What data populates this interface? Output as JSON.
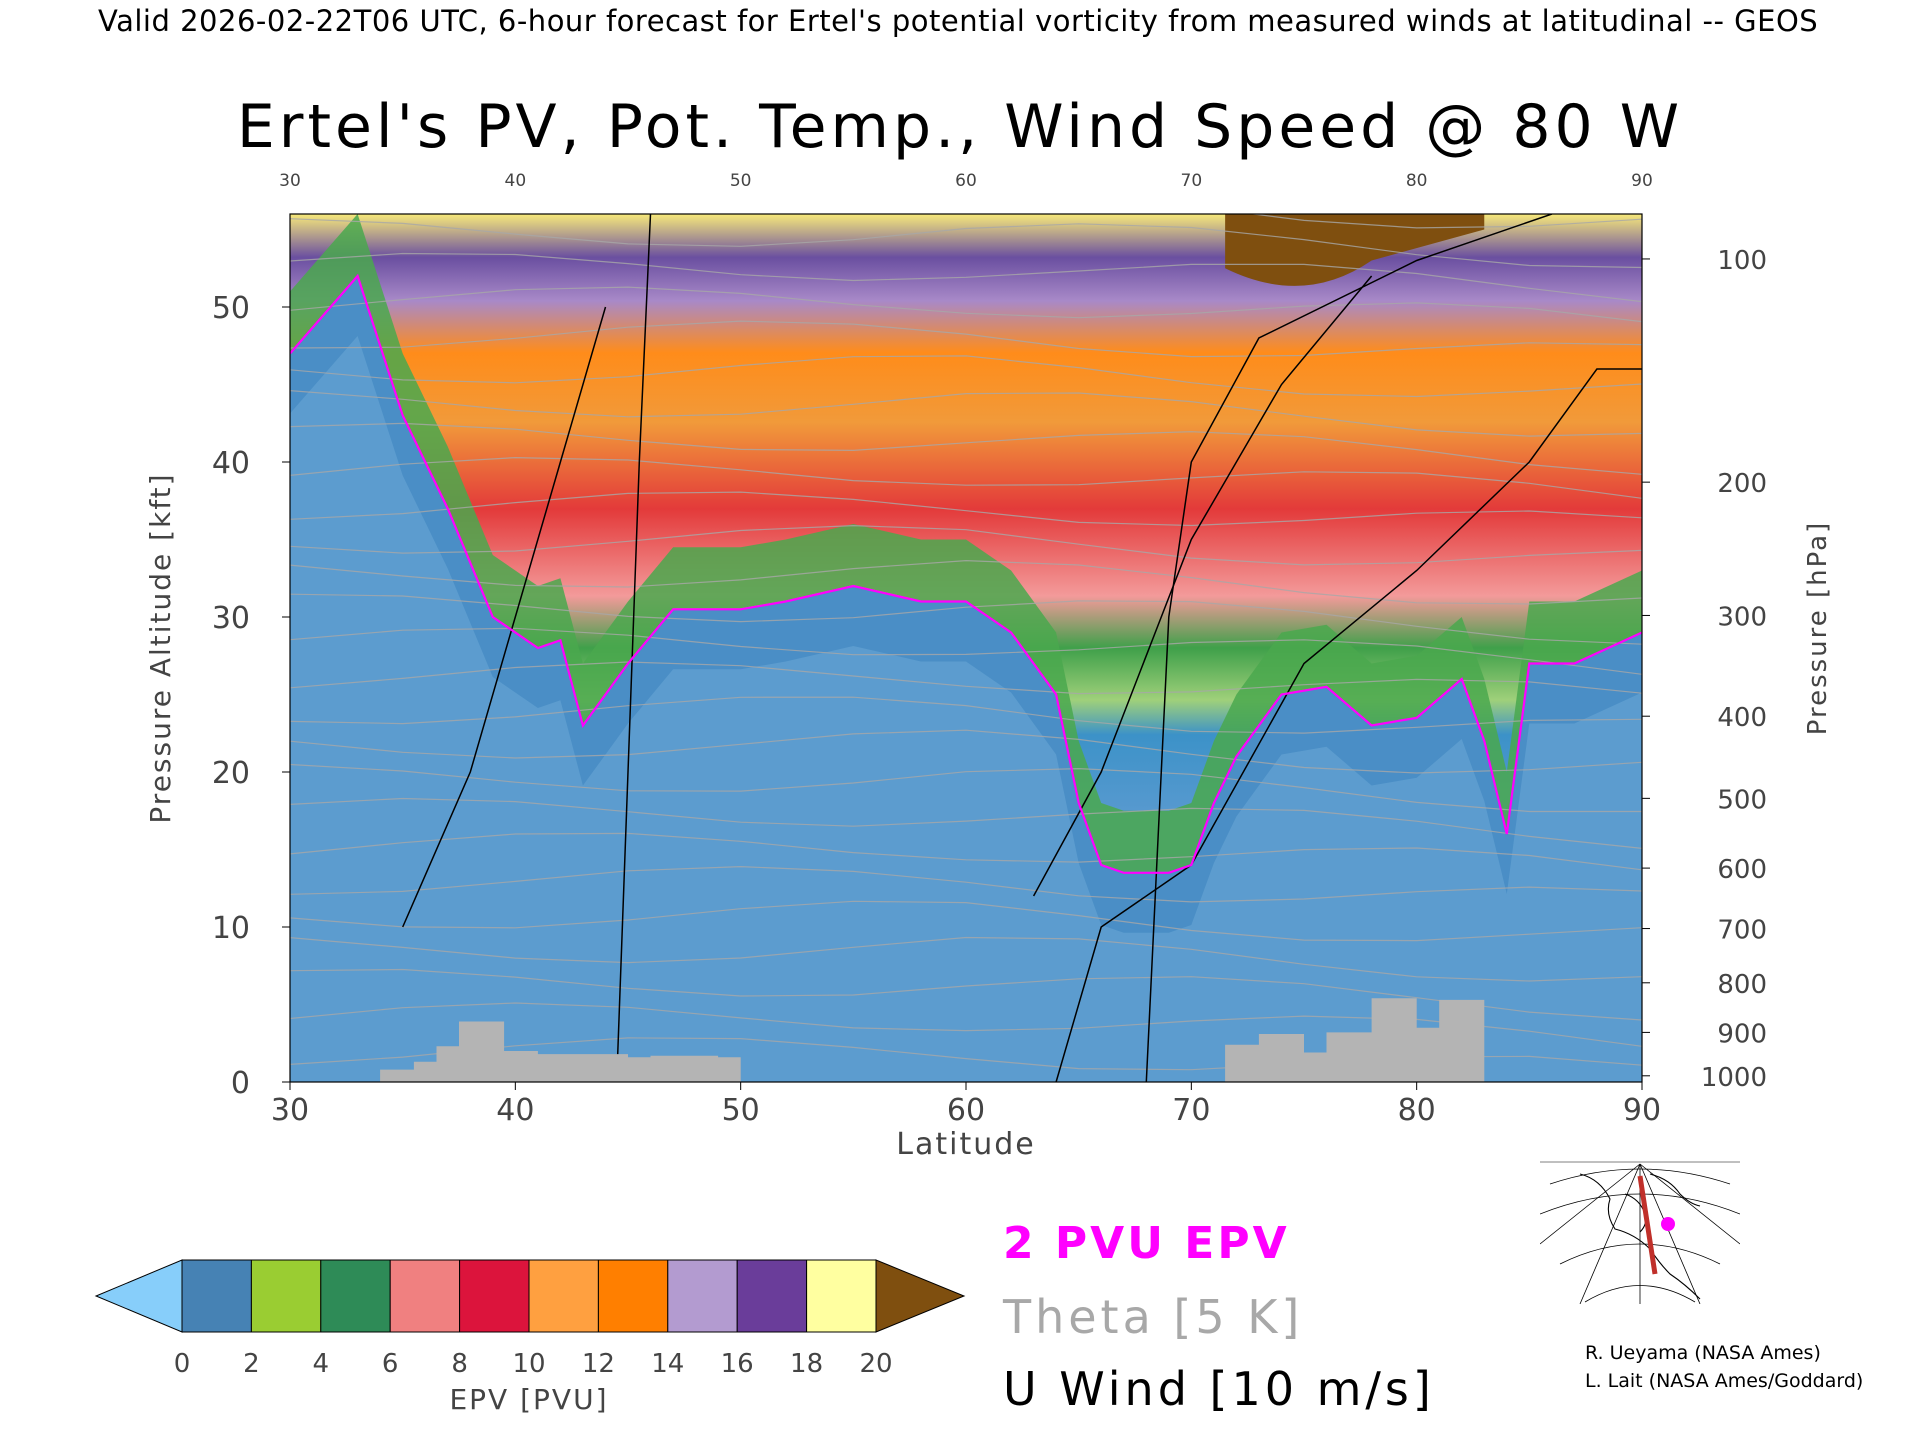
{
  "header": "Valid 2026-02-22T06 UTC, 6-hour forecast for Ertel's potential vorticity from measured winds at latitudinal -- GEOS",
  "title": "Ertel's PV, Pot. Temp., Wind Speed @ 80 W",
  "legend": {
    "pv_label": "2 PVU EPV",
    "theta_label": "Theta [5 K]",
    "wind_label": "U Wind [10 m/s]"
  },
  "credits": [
    "R. Ueyama (NASA Ames)",
    "L. Lait (NASA Ames/Goddard)"
  ],
  "colors": {
    "pv_contour": "#ff00ff",
    "theta": "#a8a8a8",
    "wind": "#000000",
    "terrain": "#b4b4b4",
    "inset_path": "#c0302a",
    "inset_marker": "#ff00ff"
  },
  "chart_data": {
    "type": "heatmap",
    "title": "Ertel's PV, Pot. Temp., Wind Speed @ 80 W",
    "xlabel": "Latitude",
    "ylabel_left": "Pressure Altitude [kft]",
    "ylabel_right": "Pressure [hPa]",
    "xlim": [
      30,
      90
    ],
    "ylim": [
      0,
      56
    ],
    "x_ticks": [
      30,
      40,
      50,
      60,
      70,
      80,
      90
    ],
    "y_ticks": [
      0,
      10,
      20,
      30,
      40,
      50
    ],
    "pressure_ticks": [
      {
        "hpa": 100,
        "kft": 53.1
      },
      {
        "hpa": 200,
        "kft": 38.7
      },
      {
        "hpa": 300,
        "kft": 30.1
      },
      {
        "hpa": 400,
        "kft": 23.6
      },
      {
        "hpa": 500,
        "kft": 18.3
      },
      {
        "hpa": 600,
        "kft": 13.8
      },
      {
        "hpa": 700,
        "kft": 9.9
      },
      {
        "hpa": 800,
        "kft": 6.4
      },
      {
        "hpa": 900,
        "kft": 3.2
      },
      {
        "hpa": 1000,
        "kft": 0.4
      }
    ],
    "colorbar": {
      "label": "EPV [PVU]",
      "ticks": [
        0,
        2,
        4,
        6,
        8,
        10,
        12,
        14,
        16,
        18,
        20
      ],
      "extend": "both",
      "colors": [
        "#87cefa",
        "#4682b4",
        "#9acd32",
        "#2e8b57",
        "#f08080",
        "#dc143c",
        "#ffa040",
        "#ff7f00",
        "#b39bd0",
        "#6a3d9a",
        "#ffffa0",
        "#7f4f0f"
      ]
    },
    "pv_2pvu_tropopause": {
      "lat": [
        30,
        33,
        35,
        37,
        39,
        41,
        42,
        43,
        44,
        45,
        47,
        50,
        52,
        55,
        58,
        60,
        62,
        63,
        64,
        65,
        66,
        67,
        69,
        70,
        71,
        72,
        74,
        76,
        78,
        80,
        82,
        83,
        84,
        85,
        87,
        90
      ],
      "kft": [
        47,
        52,
        43,
        37,
        30,
        28,
        28.5,
        23,
        25,
        27,
        30.5,
        30.5,
        31,
        32,
        31,
        31,
        29,
        27,
        25,
        18,
        14,
        13.5,
        13.5,
        14,
        18,
        21,
        25,
        25.5,
        23,
        23.5,
        26,
        22,
        16,
        27,
        27,
        29
      ]
    },
    "wind_contours": [
      {
        "value": 10,
        "lat": [
          44.5,
          45,
          45.5,
          46
        ],
        "kft": [
          0,
          20,
          40,
          56
        ]
      },
      {
        "value": 10,
        "lat": [
          68,
          68.5,
          69,
          70,
          73,
          80,
          86
        ],
        "kft": [
          0,
          15,
          30,
          40,
          48,
          53,
          56
        ]
      },
      {
        "value": 30,
        "lat": [
          35,
          38,
          40,
          42,
          44
        ],
        "kft": [
          10,
          20,
          30,
          40,
          50
        ]
      },
      {
        "value": 30,
        "lat": [
          63,
          66,
          70,
          74,
          78
        ],
        "kft": [
          12,
          20,
          35,
          45,
          52
        ]
      },
      {
        "value": 0,
        "lat": [
          64,
          66,
          70,
          75,
          80,
          85,
          88,
          90
        ],
        "kft": [
          0,
          10,
          14,
          27,
          33,
          40,
          46,
          46
        ]
      }
    ],
    "theta_levels_k": [
      290,
      300,
      350,
      360,
      370,
      380,
      390,
      400,
      410,
      420
    ],
    "terrain_kft": {
      "lat": [
        34,
        35.5,
        36.5,
        37.5,
        38.5,
        39.5,
        41,
        45,
        46,
        49,
        50,
        69.5,
        71.5,
        73,
        75,
        76,
        78,
        79.5,
        80,
        81,
        82.5,
        83
      ],
      "kft": [
        0.8,
        1.3,
        2.3,
        3.9,
        3.9,
        2,
        1.8,
        1.6,
        1.7,
        1.6,
        0,
        0,
        2.4,
        3.1,
        1.9,
        3.2,
        5.4,
        5.4,
        3.5,
        5.3,
        5.3,
        0
      ]
    }
  }
}
